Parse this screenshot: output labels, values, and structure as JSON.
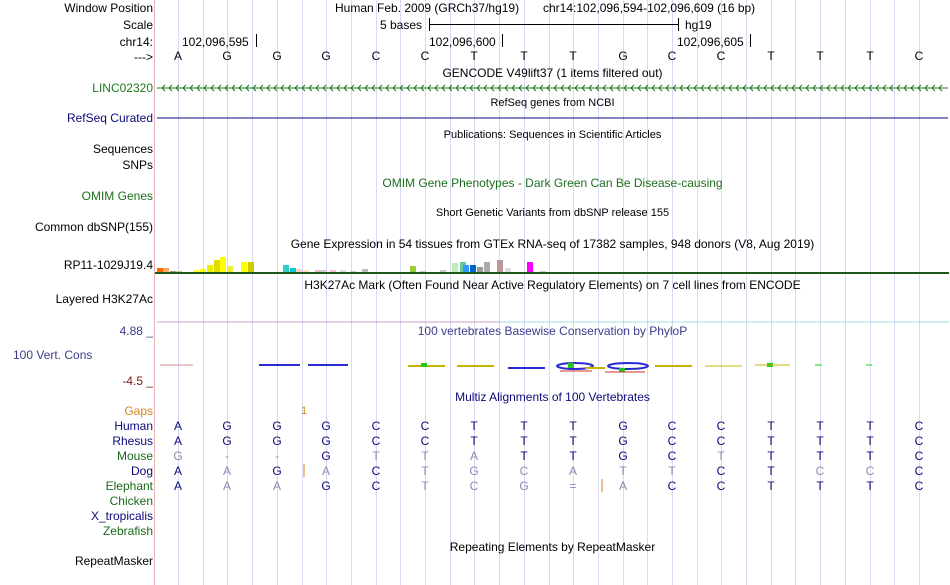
{
  "ruler": {
    "window_position_label": "Window Position",
    "scale_label": "Scale",
    "chrom_label": "chr14:",
    "arrow_label": "--->",
    "title": "Human Feb. 2009 (GRCh37/hg19)",
    "range": "chr14:102,096,594-102,096,609 (16 bp)",
    "scale_text": "5 bases",
    "assembly": "hg19",
    "positions": [
      "102,096,595",
      "102,096,600",
      "102,096,605"
    ],
    "sequence": [
      "A",
      "G",
      "G",
      "G",
      "C",
      "C",
      "T",
      "T",
      "T",
      "G",
      "C",
      "C",
      "T",
      "T",
      "T",
      "C"
    ]
  },
  "tracks": {
    "gencode": {
      "title": "GENCODE V49lift37 (1 items filtered out)",
      "item": "LINC02320",
      "color": "#1a7a1a"
    },
    "refseq": {
      "title": "RefSeq genes from NCBI",
      "label": "RefSeq Curated",
      "color": "#0a0a7a"
    },
    "publications": {
      "title": "Publications: Sequences in Scientific Articles"
    },
    "sequences": {
      "label": "Sequences"
    },
    "snps": {
      "label": "SNPs"
    },
    "omim": {
      "title": "OMIM Gene Phenotypes - Dark Green Can Be Disease-causing",
      "label": "OMIM Genes",
      "color": "#1f6e1f"
    },
    "dbsnp": {
      "title": "Short Genetic Variants from dbSNP release 155",
      "label": "Common dbSNP(155)"
    },
    "gtex": {
      "title": "Gene Expression in 54 tissues from GTEx RNA-seq of 17382 samples, 948 donors (V8, Aug 2019)",
      "item": "RP11-1029J19.4"
    },
    "h3k27ac": {
      "title": "H3K27Ac Mark (Often Found Near Active Regulatory Elements) on 7 cell lines from ENCODE",
      "label": "Layered H3K27Ac"
    },
    "phylop": {
      "title": "100 vertebrates Basewise Conservation by PhyloP",
      "label": "100 Vert. Cons",
      "max": "4.88 _",
      "min": "-4.5 _",
      "color": "#3c3c8c",
      "min_color": "#7a1a1a"
    },
    "multiz": {
      "title": "Multiz Alignments of 100 Vertebrates",
      "gaps_label": "Gaps",
      "gap_value": "1",
      "gap_color": "#d2871e",
      "color": "#0a0a7a"
    },
    "repeatmasker": {
      "title": "Repeating Elements by RepeatMasker",
      "label": "RepeatMasker"
    }
  },
  "alignment": [
    {
      "species": "Human",
      "bases": [
        "A",
        "G",
        "G",
        "G",
        "C",
        "C",
        "T",
        "T",
        "T",
        "G",
        "C",
        "C",
        "T",
        "T",
        "T",
        "C"
      ]
    },
    {
      "species": "Rhesus",
      "bases": [
        "A",
        "G",
        "G",
        "G",
        "C",
        "C",
        "T",
        "T",
        "T",
        "G",
        "C",
        "C",
        "T",
        "T",
        "T",
        "C"
      ]
    },
    {
      "species": "Mouse",
      "bases": [
        "G",
        "-",
        "-",
        "G",
        "T",
        "T",
        "A",
        "T",
        "T",
        "G",
        "C",
        "T",
        "T",
        "T",
        "T",
        "C"
      ]
    },
    {
      "species": "Dog",
      "bases": [
        "A",
        "A",
        "G",
        "A",
        "C",
        "T",
        "G",
        "C",
        "A",
        "T",
        "T",
        "C",
        "T",
        "C",
        "C",
        "C"
      ]
    },
    {
      "species": "Elephant",
      "bases": [
        "A",
        "A",
        "A",
        "G",
        "C",
        "T",
        "C",
        "G",
        "=",
        "A",
        "C",
        "C",
        "T",
        "T",
        "T",
        "C"
      ]
    },
    {
      "species": "Chicken",
      "bases": []
    },
    {
      "species": "X_tropicalis",
      "bases": []
    },
    {
      "species": "Zebrafish",
      "bases": []
    }
  ]
}
